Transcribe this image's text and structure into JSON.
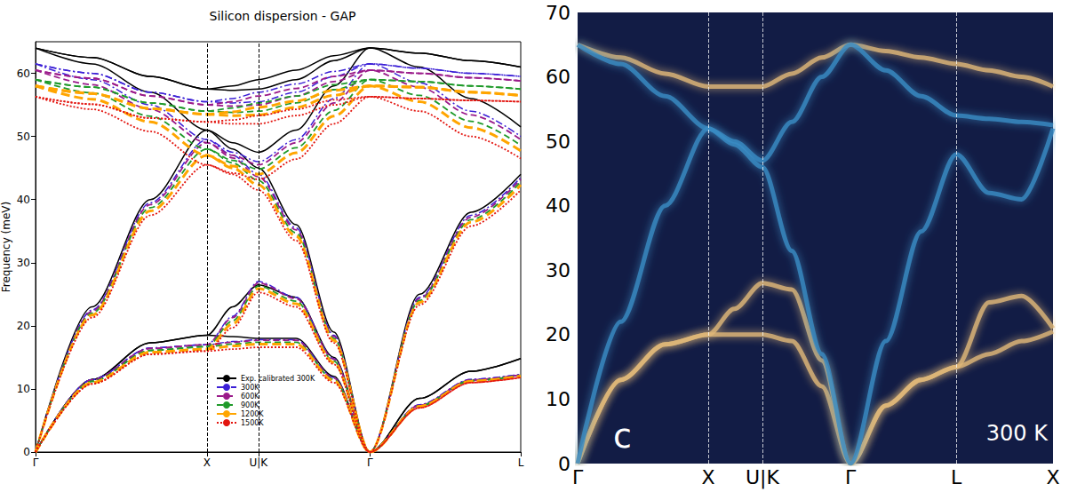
{
  "chart_data": [
    {
      "type": "line",
      "title": "Silicon dispersion - GAP",
      "ylabel": "Frequency (meV)",
      "x": [
        0,
        0.33,
        0.67,
        1,
        1.15,
        1.3,
        1.52,
        1.74,
        1.95,
        2.24,
        2.54,
        2.83
      ],
      "xlim": [
        0,
        2.83
      ],
      "xticks": [
        {
          "value": 0,
          "label": "Γ"
        },
        {
          "value": 1,
          "label": "X"
        },
        {
          "value": 1.3,
          "label": "U|K"
        },
        {
          "value": 1.95,
          "label": "Γ"
        },
        {
          "value": 2.83,
          "label": "L"
        }
      ],
      "ylim": [
        0,
        65
      ],
      "yticks": [
        0,
        10,
        20,
        30,
        40,
        50,
        60
      ],
      "grid": false,
      "legend": "bottom",
      "series": [
        {
          "name": "Exp. calibrated 300K",
          "color": "#000000",
          "line_style": "solid",
          "branches": [
            [
              0,
              11.5,
              17.3,
              18.5,
              18.3,
              18,
              18,
              12,
              0,
              8.5,
              12.8,
              14.8
            ],
            [
              0,
              11.5,
              17.3,
              18.5,
              23,
              26.5,
              24.5,
              15,
              0,
              8.5,
              12.8,
              14.8
            ],
            [
              0,
              23,
              40,
              51,
              48,
              45,
              36,
              19,
              0,
              25,
              38,
              44
            ],
            [
              64,
              61.5,
              57,
              51,
              49,
              47.5,
              51,
              58,
              64,
              61,
              56,
              51.5
            ],
            [
              64,
              62.5,
              59.5,
              57.5,
              57.3,
              57.5,
              59,
              62,
              64,
              63.2,
              62,
              61
            ],
            [
              64,
              62.5,
              59.5,
              57.5,
              58,
              59,
              60.5,
              62.8,
              64,
              63.2,
              62,
              61
            ]
          ]
        },
        {
          "name": "300K",
          "color": "#3b1fd6",
          "line_style": "dashdot",
          "branches": [
            [
              0,
              11.5,
              16.5,
              17,
              17.5,
              17.8,
              17.8,
              11.8,
              0,
              7.5,
              11.5,
              12.3
            ],
            [
              0,
              11.5,
              16.5,
              17,
              21.5,
              27,
              24.5,
              14.8,
              0,
              7.5,
              11.5,
              12.3
            ],
            [
              0,
              22.5,
              39.5,
              49.5,
              47,
              44,
              35.5,
              18.5,
              0,
              24.5,
              37.5,
              43.5
            ],
            [
              61.5,
              59,
              55,
              49.5,
              47.5,
              46,
              49.5,
              56,
              61.5,
              58.5,
              54,
              50
            ],
            [
              61.5,
              60,
              57,
              55.5,
              55.3,
              55.5,
              57,
              59.5,
              61.5,
              60.8,
              60,
              59.5
            ],
            [
              61.5,
              60,
              57,
              55.5,
              56,
              57,
              58.3,
              60.3,
              61.5,
              60.8,
              60,
              59.5
            ]
          ]
        },
        {
          "name": "600K",
          "color": "#9a1a8a",
          "line_style": "dashed",
          "branches": [
            [
              0,
              11.4,
              16.4,
              17,
              17.4,
              17.7,
              17.7,
              11.7,
              0,
              7.4,
              11.4,
              12.2
            ],
            [
              0,
              11.4,
              16.4,
              17,
              21.3,
              26.8,
              24.3,
              14.7,
              0,
              7.4,
              11.4,
              12.2
            ],
            [
              0,
              22.3,
              39.2,
              49,
              46.6,
              43.6,
              35.2,
              18.3,
              0,
              24.3,
              37.2,
              43.2
            ],
            [
              60.5,
              58.2,
              54.3,
              49,
              47,
              45.5,
              49,
              55.3,
              60.5,
              57.8,
              53.4,
              49.5
            ],
            [
              60.5,
              59.2,
              56.4,
              55,
              54.8,
              55,
              56.4,
              58.7,
              60.5,
              60,
              59.3,
              58.8
            ],
            [
              60.5,
              59.2,
              56.4,
              55,
              55.5,
              56.4,
              57.6,
              59.5,
              60.5,
              60,
              59.3,
              58.8
            ]
          ]
        },
        {
          "name": "900K",
          "color": "#1f9a2a",
          "line_style": "dashed",
          "branches": [
            [
              0,
              11.2,
              16.1,
              16.7,
              17.1,
              17.4,
              17.4,
              11.5,
              0,
              7.3,
              11.3,
              12.1
            ],
            [
              0,
              11.2,
              16.1,
              16.7,
              20.8,
              26.3,
              23.9,
              14.4,
              0,
              7.3,
              11.3,
              12.1
            ],
            [
              0,
              22,
              38.7,
              48,
              45.8,
              43,
              34.7,
              18,
              0,
              24,
              36.8,
              42.8
            ],
            [
              59,
              56.9,
              53.2,
              48,
              46.2,
              44.8,
              48.2,
              54.1,
              59,
              56.5,
              52.4,
              48.6
            ],
            [
              59,
              57.8,
              55.3,
              54,
              53.8,
              54,
              55.3,
              57.4,
              59,
              58.7,
              58,
              57.5
            ],
            [
              59,
              57.8,
              55.3,
              54,
              54.5,
              55.3,
              56.4,
              58.2,
              59,
              58.7,
              58,
              57.5
            ]
          ]
        },
        {
          "name": "1200K",
          "color": "#ffa500",
          "line_style": "longdash",
          "branches": [
            [
              0,
              11,
              15.8,
              16.3,
              16.8,
              17.1,
              17.1,
              11.3,
              0,
              7.2,
              11.2,
              12
            ],
            [
              0,
              11,
              15.8,
              16.3,
              20.3,
              25.9,
              23.5,
              14.2,
              0,
              7.2,
              11.2,
              12
            ],
            [
              0,
              21.7,
              38.2,
              47,
              45,
              42.3,
              34.2,
              17.7,
              0,
              23.7,
              36.4,
              42.3
            ],
            [
              58,
              55.9,
              52.3,
              47,
              45.3,
              44,
              47.4,
              53.2,
              58,
              55.5,
              51.4,
              47.7
            ],
            [
              58,
              56.8,
              54.4,
              53.5,
              53.3,
              53.4,
              54.6,
              56.5,
              58,
              57.8,
              57,
              56.5
            ],
            [
              58,
              56.8,
              54.4,
              53.5,
              53.9,
              54.6,
              55.6,
              57.3,
              58,
              57.8,
              57,
              56.5
            ]
          ]
        },
        {
          "name": "1500K",
          "color": "#e3150f",
          "line_style": "dotted",
          "branches": [
            [
              0,
              10.8,
              15.5,
              16,
              16.3,
              16.6,
              16.6,
              11,
              0,
              7,
              11,
              11.8
            ],
            [
              0,
              10.8,
              15.5,
              16,
              19.7,
              25.3,
              23,
              13.9,
              0,
              7,
              11,
              11.8
            ],
            [
              0,
              21.3,
              37.5,
              45.5,
              44,
              41.5,
              33.5,
              17.3,
              0,
              23.3,
              35.8,
              41.5
            ],
            [
              56.3,
              54.3,
              50.8,
              45.5,
              44.2,
              43.2,
              46.4,
              52,
              56.3,
              54,
              50,
              46.5
            ],
            [
              56.3,
              55.1,
              52.9,
              52.3,
              52,
              52,
              53.3,
              55,
              56.3,
              56,
              55.7,
              55.5
            ],
            [
              56.3,
              55.1,
              52.9,
              52.3,
              52.6,
              53.3,
              54.3,
              55.8,
              56.3,
              56,
              55.7,
              55.5
            ]
          ]
        }
      ]
    },
    {
      "type": "line",
      "x": [
        0,
        0.33,
        0.67,
        1,
        1.2,
        1.415,
        1.64,
        1.87,
        2.09,
        2.36,
        2.63,
        2.9,
        3.15,
        3.4,
        3.64
      ],
      "xlim": [
        0,
        3.64
      ],
      "xticks": [
        {
          "value": 0,
          "label": "Γ"
        },
        {
          "value": 1,
          "label": "X"
        },
        {
          "value": 1.415,
          "label": "U|K"
        },
        {
          "value": 2.09,
          "label": "Γ"
        },
        {
          "value": 2.9,
          "label": "L"
        },
        {
          "value": 3.64,
          "label": "X"
        }
      ],
      "ylim": [
        0,
        70
      ],
      "yticks": [
        0,
        10,
        20,
        30,
        40,
        50,
        60,
        70
      ],
      "grid": false,
      "annotations": [
        "c",
        "300 K"
      ],
      "series": [
        {
          "color": "#e0b878",
          "branches": [
            [
              0,
              13,
              18.5,
              20,
              20,
              20,
              19,
              12,
              0,
              9,
              13,
              15,
              17,
              19,
              20.5
            ],
            [
              0,
              13,
              18.5,
              20,
              24,
              28,
              27,
              16,
              0,
              9,
              13,
              15,
              25,
              26,
              21
            ],
            [
              65,
              63,
              60.5,
              58.5,
              58.5,
              58.5,
              60.5,
              63,
              65,
              64,
              63,
              62,
              61,
              60,
              58.5
            ]
          ]
        },
        {
          "color": "#3a8cc4",
          "branches": [
            [
              0,
              22,
              40,
              52,
              49.5,
              46,
              33,
              17,
              0,
              19,
              36,
              48,
              42,
              41,
              52
            ],
            [
              65,
              62,
              57,
              52,
              50,
              47,
              53,
              60,
              65,
              61,
              57,
              54,
              53.5,
              53,
              52.5
            ]
          ]
        }
      ]
    }
  ]
}
